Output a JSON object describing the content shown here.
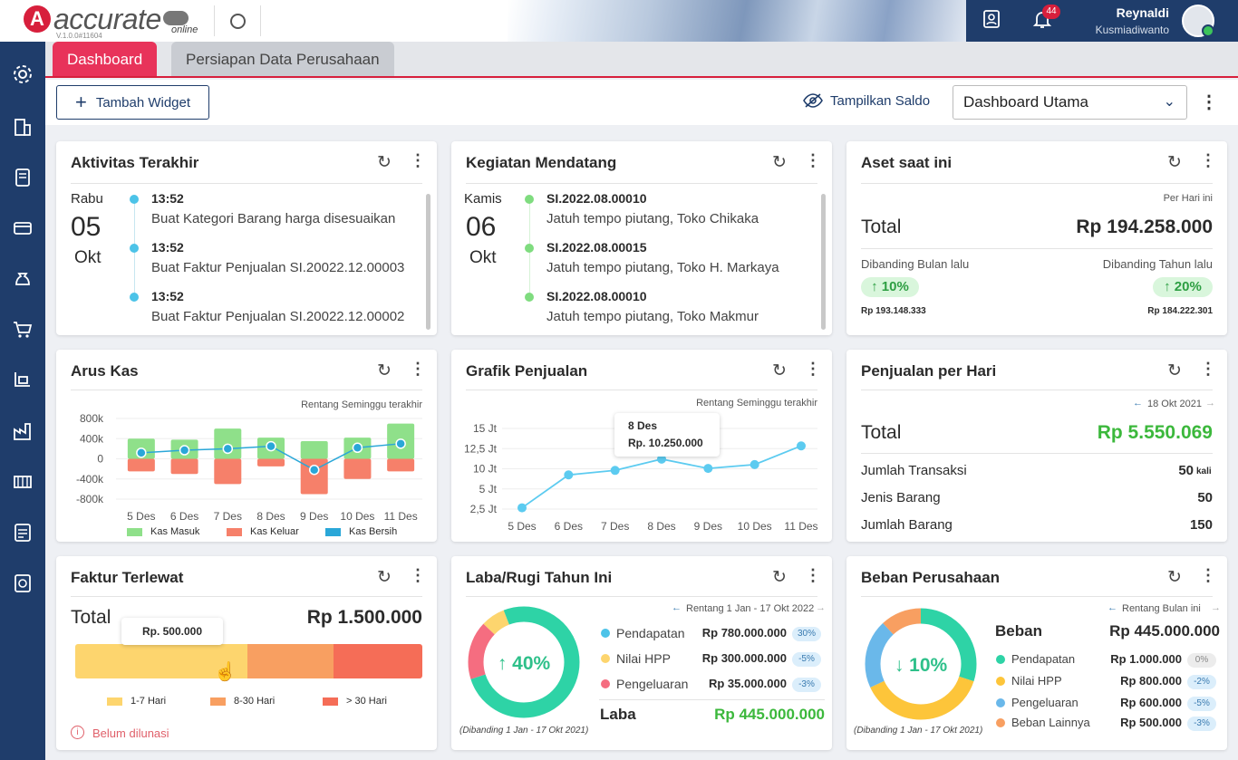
{
  "app": {
    "logo_letter": "A",
    "logo_text": "accurate",
    "logo_sub": "online",
    "version": "V.1.0.0#11604",
    "notif_count": "44",
    "user_first": "Reynaldi",
    "user_last": "Kusmiadiwanto"
  },
  "tabs": [
    {
      "label": "Dashboard"
    },
    {
      "label": "Persiapan Data Perusahaan"
    }
  ],
  "toolbar": {
    "add_widget": "Tambah Widget",
    "show_balance": "Tampilkan Saldo",
    "dashboard_select": "Dashboard Utama"
  },
  "aktivitas": {
    "title": "Aktivitas Terakhir",
    "day": "Rabu",
    "date": "05",
    "month": "Okt",
    "items": [
      {
        "time": "13:52",
        "text": "Buat Kategori Barang harga disesuaikan"
      },
      {
        "time": "13:52",
        "text": "Buat Faktur Penjualan SI.20022.12.00003"
      },
      {
        "time": "13:52",
        "text": "Buat Faktur Penjualan SI.20022.12.00002"
      }
    ],
    "dot_color": "#4cc3e8"
  },
  "kegiatan": {
    "title": "Kegiatan Mendatang",
    "day": "Kamis",
    "date": "06",
    "month": "Okt",
    "items": [
      {
        "code": "SI.2022.08.00010",
        "text": "Jatuh tempo piutang, Toko Chikaka"
      },
      {
        "code": "SI.2022.08.00015",
        "text": "Jatuh tempo piutang, Toko H. Markaya"
      },
      {
        "code": "SI.2022.08.00010",
        "text": "Jatuh tempo piutang, Toko Makmur"
      }
    ],
    "dot_color": "#7fdc7f"
  },
  "aset": {
    "title": "Aset saat ini",
    "period": "Per Hari ini",
    "total_label": "Total",
    "total_value": "Rp 194.258.000",
    "cmp_month_label": "Dibanding Bulan lalu",
    "cmp_year_label": "Dibanding Tahun lalu",
    "month_pct": "↑ 10%",
    "year_pct": "↑ 20%",
    "month_val": "Rp 193.148.333",
    "year_val": "Rp 184.222.301"
  },
  "aruskas": {
    "title": "Arus Kas",
    "range": "Rentang Seminggu terakhir",
    "legend": [
      "Kas Masuk",
      "Kas Keluar",
      "Kas Bersih"
    ]
  },
  "grafik": {
    "title": "Grafik Penjualan",
    "range": "Rentang Seminggu terakhir",
    "tooltip_date": "8 Des",
    "tooltip_value": "Rp. 10.250.000"
  },
  "penjualan_hari": {
    "title": "Penjualan per Hari",
    "date": "18 Okt 2021",
    "total_label": "Total",
    "total_value": "Rp 5.550.069",
    "rows": [
      {
        "label": "Jumlah Transaksi",
        "value": "50",
        "unit": "kali"
      },
      {
        "label": "Jenis Barang",
        "value": "50",
        "unit": ""
      },
      {
        "label": "Jumlah Barang",
        "value": "150",
        "unit": ""
      }
    ]
  },
  "faktur": {
    "title": "Faktur Terlewat",
    "total_label": "Total",
    "total_value": "Rp 1.500.000",
    "tooltip": "Rp. 500.000",
    "legend": [
      "1-7 Hari",
      "8-30 Hari",
      "> 30 Hari"
    ],
    "note": "Belum dilunasi",
    "segments": [
      {
        "fraction": 0.495,
        "color": "#fdd56e"
      },
      {
        "fraction": 0.25,
        "color": "#f89f61"
      },
      {
        "fraction": 0.255,
        "color": "#f56d57"
      }
    ]
  },
  "labarugi": {
    "title": "Laba/Rugi Tahun Ini",
    "range": "Rentang 1 Jan - 17 Okt 2022",
    "center": "↑ 40%",
    "rows": [
      {
        "label": "Pendapatan",
        "value": "Rp 780.000.000",
        "badge": "30%",
        "color": "#4cc3e8"
      },
      {
        "label": "Nilai HPP",
        "value": "Rp 300.000.000",
        "badge": "-5%",
        "color": "#fdd56e"
      },
      {
        "label": "Pengeluaran",
        "value": "Rp 35.000.000",
        "badge": "-3%",
        "color": "#f56d80"
      }
    ],
    "laba_label": "Laba",
    "laba_value": "Rp 445.000.000",
    "compare": "(Dibanding 1 Jan - 17 Okt 2021)",
    "donut": [
      {
        "fraction": 0.7,
        "color": "#2ed3a6"
      },
      {
        "fraction": 0.17,
        "color": "#f56d80"
      },
      {
        "fraction": 0.07,
        "color": "#fdd56e"
      },
      {
        "fraction": 0.06,
        "color": "#2ed3a6"
      }
    ]
  },
  "beban": {
    "title": "Beban Perusahaan",
    "range": "Rentang Bulan ini",
    "center": "↓ 10%",
    "beban_label": "Beban",
    "beban_value": "Rp 445.000.000",
    "rows": [
      {
        "label": "Pendapatan",
        "value": "Rp 1.000.000",
        "badge": "0%",
        "color": "#2ed3a6",
        "grey": true
      },
      {
        "label": "Nilai HPP",
        "value": "Rp 800.000",
        "badge": "-2%",
        "color": "#fdc53a",
        "grey": false
      },
      {
        "label": "Pengeluaran",
        "value": "Rp 600.000",
        "badge": "-5%",
        "color": "#6ab8ea",
        "grey": false
      },
      {
        "label": "Beban Lainnya",
        "value": "Rp 500.000",
        "badge": "-3%",
        "color": "#f89f61",
        "grey": false
      }
    ],
    "compare": "(Dibanding 1 Jan - 17 Okt 2021)",
    "donut": [
      {
        "fraction": 0.3,
        "color": "#2ed3a6"
      },
      {
        "fraction": 0.38,
        "color": "#fdc53a"
      },
      {
        "fraction": 0.2,
        "color": "#6ab8ea"
      },
      {
        "fraction": 0.12,
        "color": "#f89f61"
      }
    ]
  },
  "chart_data": [
    {
      "type": "bar",
      "title": "Arus Kas",
      "categories": [
        "5 Des",
        "6 Des",
        "7 Des",
        "8 Des",
        "9 Des",
        "10 Des",
        "11 Des"
      ],
      "yticks": [
        "800k",
        "400k",
        "0",
        "-400k",
        "-800k"
      ],
      "ylim": [
        -800000,
        800000
      ],
      "series": [
        {
          "name": "Kas Masuk",
          "values": [
            400000,
            380000,
            600000,
            420000,
            350000,
            420000,
            700000
          ]
        },
        {
          "name": "Kas Keluar",
          "values": [
            -250000,
            -300000,
            -500000,
            -150000,
            -700000,
            -400000,
            -250000
          ]
        },
        {
          "name": "Kas Bersih",
          "values": [
            120000,
            170000,
            200000,
            250000,
            -220000,
            220000,
            300000
          ]
        }
      ]
    },
    {
      "type": "line",
      "title": "Grafik Penjualan",
      "categories": [
        "5 Des",
        "6 Des",
        "7 Des",
        "8 Des",
        "9 Des",
        "10 Des",
        "11 Des"
      ],
      "yticks": [
        "15 Jt",
        "12,5 Jt",
        "10 Jt",
        "5 Jt",
        "2,5 Jt"
      ],
      "ylim": [
        2500000,
        15000000
      ],
      "series": [
        {
          "name": "",
          "values": [
            2700000,
            7800000,
            8500000,
            10250000,
            8800000,
            9400000,
            12300000
          ]
        }
      ]
    }
  ]
}
